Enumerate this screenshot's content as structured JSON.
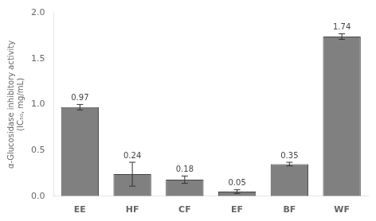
{
  "chart_data": {
    "type": "bar",
    "y_label": "α-Glucosidase inhibitory activity\n(IC₅₀, mg/mL)",
    "categories": [
      "EE",
      "HF",
      "CF",
      "EF",
      "BF",
      "WF"
    ],
    "values": [
      0.97,
      0.24,
      0.18,
      0.05,
      0.35,
      1.74
    ],
    "errors": [
      0.03,
      0.13,
      0.04,
      0.02,
      0.02,
      0.03
    ],
    "color": "#808080",
    "ylim": [
      0,
      2.0
    ],
    "yticks": [
      {
        "value": 0,
        "label": "0.0"
      },
      0.5,
      {
        "value": 1,
        "label": "1.0"
      },
      1.5,
      {
        "value": 2,
        "label": "2.0"
      }
    ],
    "grid": false,
    "data_labels": true
  }
}
